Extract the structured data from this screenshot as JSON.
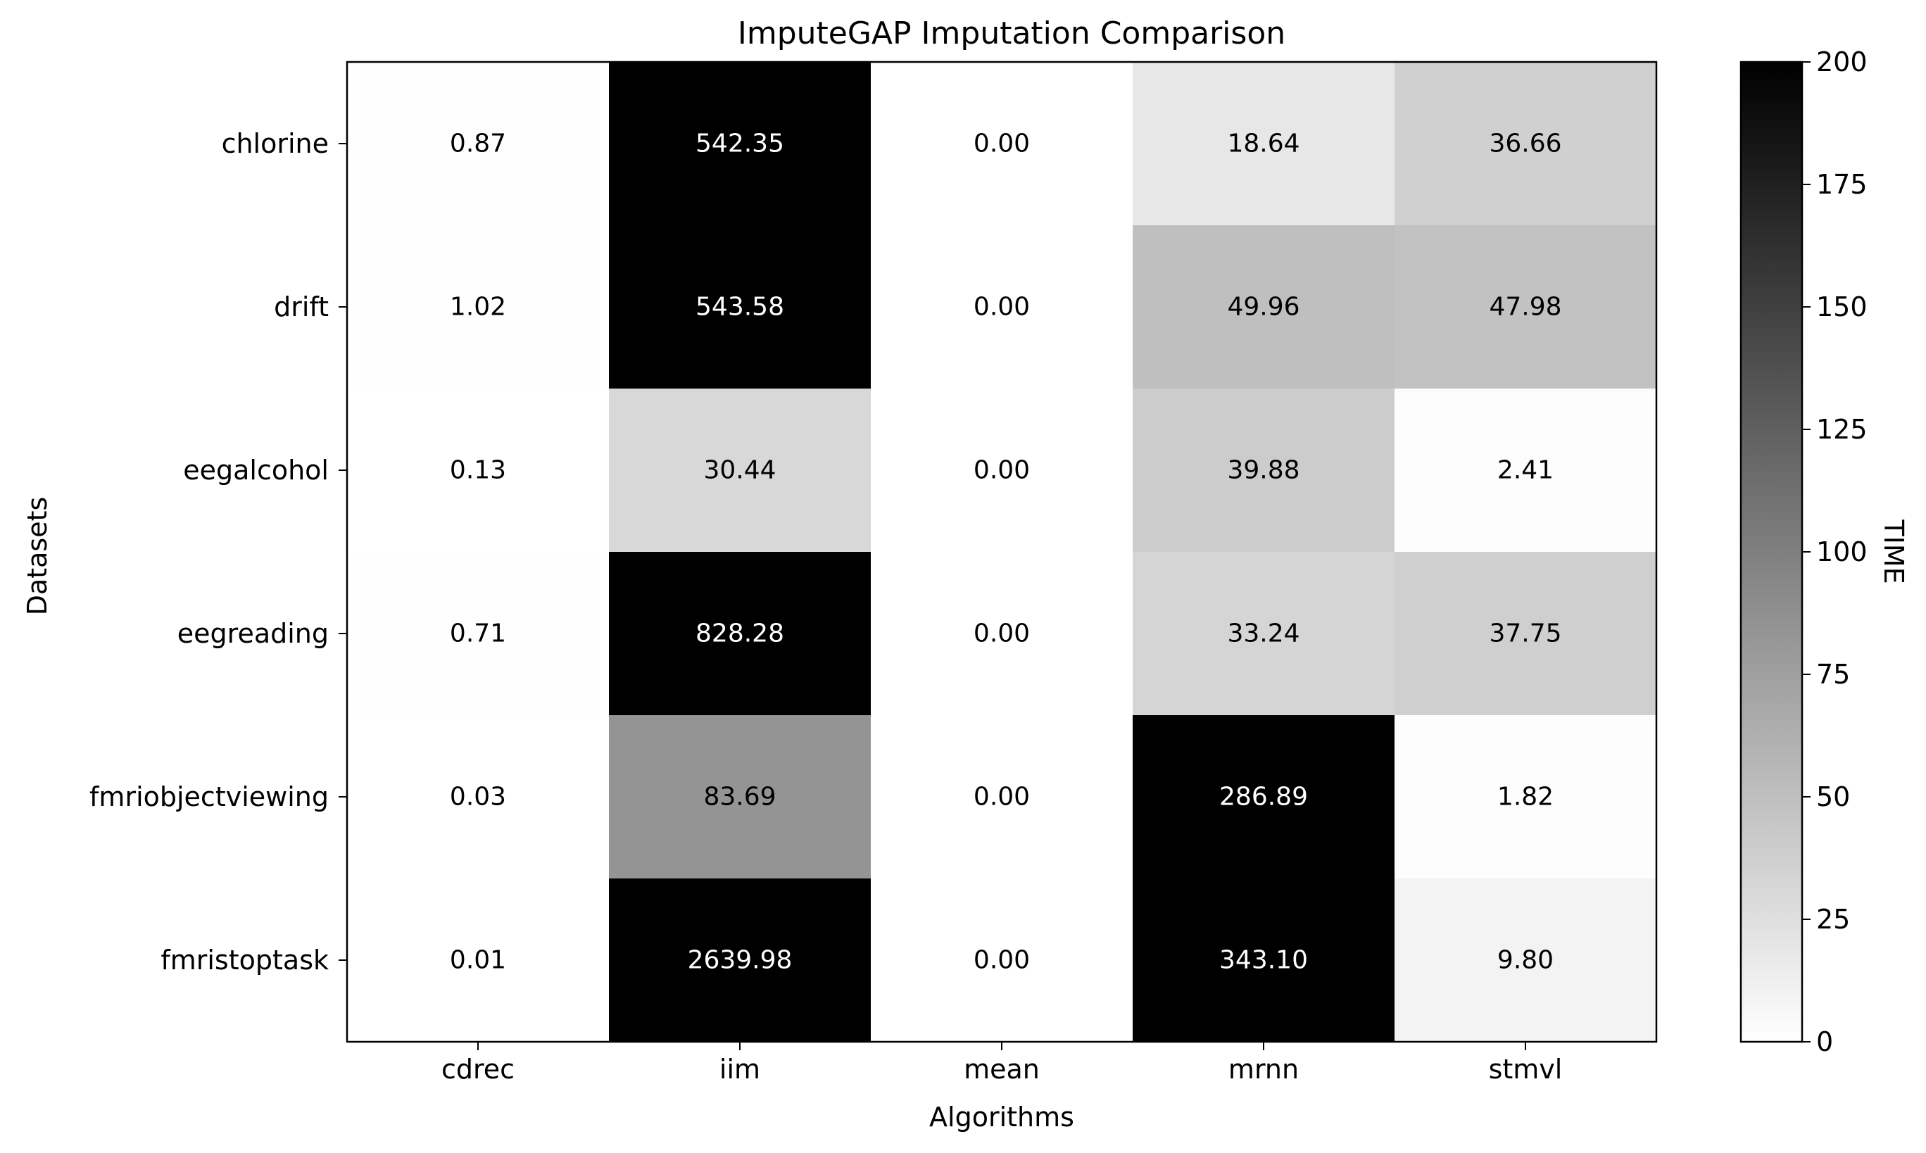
{
  "chart_data": {
    "type": "heatmap",
    "title": "ImputeGAP Imputation Comparison",
    "xlabel": "Algorithms",
    "ylabel": "Datasets",
    "x_categories": [
      "cdrec",
      "iim",
      "mean",
      "mrnn",
      "stmvl"
    ],
    "y_categories": [
      "chlorine",
      "drift",
      "eegalcohol",
      "eegreading",
      "fmriobjectviewing",
      "fmristoptask"
    ],
    "values": [
      [
        0.87,
        542.35,
        0.0,
        18.64,
        36.66
      ],
      [
        1.02,
        543.58,
        0.0,
        49.96,
        47.98
      ],
      [
        0.13,
        30.44,
        0.0,
        39.88,
        2.41
      ],
      [
        0.71,
        828.28,
        0.0,
        33.24,
        37.75
      ],
      [
        0.03,
        83.69,
        0.0,
        286.89,
        1.82
      ],
      [
        0.01,
        2639.98,
        0.0,
        343.1,
        9.8
      ]
    ],
    "colorbar": {
      "label": "TIME",
      "range": [
        0,
        200
      ],
      "ticks": [
        0,
        25,
        50,
        75,
        100,
        125,
        150,
        175,
        200
      ],
      "low_color": "#ffffff",
      "high_color": "#000000"
    },
    "grid": false
  }
}
